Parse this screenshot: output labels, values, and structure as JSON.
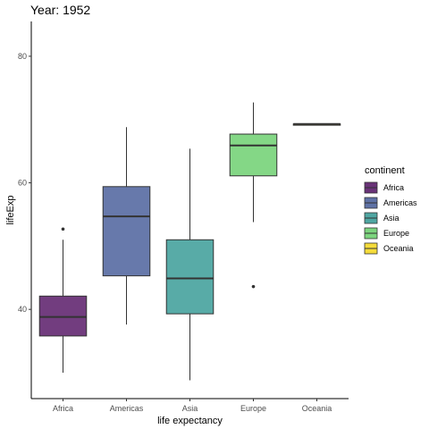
{
  "chart_data": {
    "type": "box",
    "title": "Year: 1952",
    "xlabel": "life expectancy",
    "ylabel": "lifeExp",
    "categories": [
      "Africa",
      "Americas",
      "Asia",
      "Europe",
      "Oceania"
    ],
    "y_ticks": [
      40,
      60,
      80
    ],
    "ylim": [
      25.9,
      85.5
    ],
    "grid": false,
    "legend": {
      "title": "continent",
      "placement": "right",
      "entries": [
        "Africa",
        "Americas",
        "Asia",
        "Europe",
        "Oceania"
      ]
    },
    "colors": {
      "Africa": "#6a3378",
      "Americas": "#5f72a6",
      "Asia": "#4fa6a2",
      "Europe": "#7dd57f",
      "Oceania": "#f5dc3b"
    },
    "boxes": [
      {
        "category": "Africa",
        "min": 30.0,
        "q1": 35.8,
        "median": 38.8,
        "q3": 42.1,
        "max": 51.0,
        "outliers": [
          52.7
        ]
      },
      {
        "category": "Americas",
        "min": 37.6,
        "q1": 45.3,
        "median": 54.7,
        "q3": 59.4,
        "max": 68.8,
        "outliers": []
      },
      {
        "category": "Asia",
        "min": 28.8,
        "q1": 39.3,
        "median": 44.9,
        "q3": 51.0,
        "max": 65.4,
        "outliers": []
      },
      {
        "category": "Europe",
        "min": 53.8,
        "q1": 61.1,
        "median": 65.9,
        "q3": 67.7,
        "max": 72.7,
        "outliers": [
          43.6
        ]
      },
      {
        "category": "Oceania",
        "min": 69.1,
        "q1": 69.1,
        "median": 69.3,
        "q3": 69.3,
        "max": 69.4,
        "outliers": []
      }
    ]
  }
}
